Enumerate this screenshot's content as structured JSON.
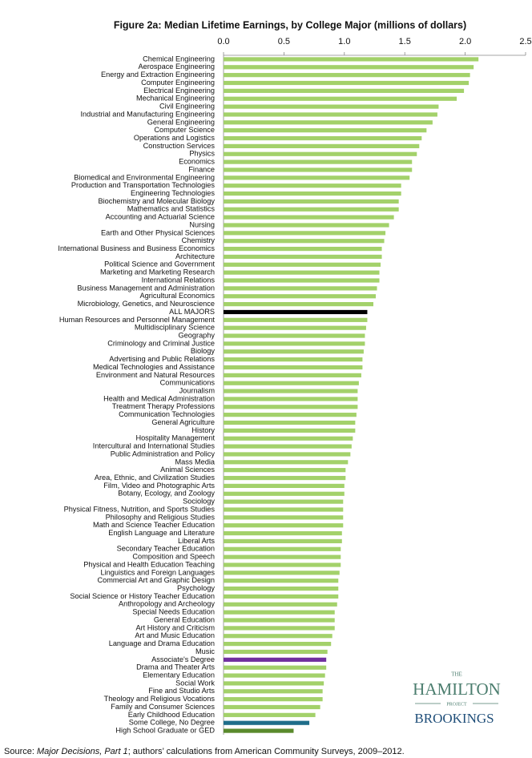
{
  "chart_data": {
    "type": "bar",
    "horizontal": true,
    "title": "Figure 2a: Median Lifetime Earnings, by College Major (millions of dollars)",
    "categories": [
      "Chemical Engineering",
      "Aerospace Engineering",
      "Energy and Extraction Engineering",
      "Computer Engineering",
      "Electrical Engineering",
      "Mechanical Engineering",
      "Civil Engineering",
      "Industrial and Manufacturing Engineering",
      "General Engineering",
      "Computer Science",
      "Operations and Logistics",
      "Construction Services",
      "Physics",
      "Economics",
      "Finance",
      "Biomedical and Environmental Engineering",
      "Production and Transportation Technologies",
      "Engineering Technologies",
      "Biochemistry and Molecular Biology",
      "Mathematics and Statistics",
      "Accounting and Actuarial Science",
      "Nursing",
      "Earth and Other Physical Sciences",
      "Chemistry",
      "International Business and Business Economics",
      "Architecture",
      "Political Science and Government",
      "Marketing and Marketing Research",
      "International Relations",
      "Business Management and Administration",
      "Agricultural Economics",
      "Microbiology, Genetics, and Neuroscience",
      "ALL MAJORS",
      "Human Resources and Personnel Management",
      "Multidisciplinary Science",
      "Geography",
      "Criminology and Criminal Justice",
      "Biology",
      "Advertising and Public Relations",
      "Medical Technologies and Assistance",
      "Environment and Natural Resources",
      "Communications",
      "Journalism",
      "Health and Medical Administration",
      "Treatment Therapy Professions",
      "Communication Technologies",
      "General Agriculture",
      "History",
      "Hospitality Management",
      "Intercultural and International Studies",
      "Public Administration and Policy",
      "Mass Media",
      "Animal Sciences",
      "Area, Ethnic, and Civilization Studies",
      "Film, Video and Photographic Arts",
      "Botany, Ecology, and Zoology",
      "Sociology",
      "Physical Fitness, Nutrition, and Sports Studies",
      "Philosophy and Religious Studies",
      "Math and Science Teacher Education",
      "English Language and Literature",
      "Liberal Arts",
      "Secondary Teacher Education",
      "Composition and Speech",
      "Physical and Health Education Teaching",
      "Linguistics and Foreign Languages",
      "Commercial Art and Graphic Design",
      "Psychology",
      "Social Science or History Teacher Education",
      "Anthropology and Archeology",
      "Special Needs Education",
      "General Education",
      "Art History and Criticism",
      "Art and Music Education",
      "Language and Drama Education",
      "Music",
      "Associate's Degree",
      "Drama and Theater Arts",
      "Elementary Education",
      "Social Work",
      "Fine and Studio Arts",
      "Theology and Religious Vocations",
      "Family and Consumer Sciences",
      "Early Childhood Education",
      "Some College, No Degree",
      "High School Graduate or GED"
    ],
    "values": [
      2.11,
      2.07,
      2.04,
      2.03,
      1.99,
      1.93,
      1.78,
      1.77,
      1.73,
      1.68,
      1.64,
      1.62,
      1.6,
      1.56,
      1.56,
      1.54,
      1.47,
      1.47,
      1.45,
      1.45,
      1.41,
      1.37,
      1.34,
      1.33,
      1.31,
      1.31,
      1.3,
      1.29,
      1.29,
      1.27,
      1.26,
      1.24,
      1.19,
      1.19,
      1.18,
      1.17,
      1.17,
      1.16,
      1.15,
      1.15,
      1.14,
      1.12,
      1.11,
      1.11,
      1.11,
      1.1,
      1.09,
      1.09,
      1.07,
      1.06,
      1.05,
      1.03,
      1.01,
      1.01,
      1.0,
      1.0,
      0.99,
      0.99,
      0.99,
      0.99,
      0.98,
      0.98,
      0.97,
      0.97,
      0.97,
      0.96,
      0.95,
      0.95,
      0.95,
      0.94,
      0.92,
      0.92,
      0.92,
      0.9,
      0.89,
      0.86,
      0.85,
      0.85,
      0.84,
      0.83,
      0.82,
      0.82,
      0.8,
      0.76,
      0.71,
      0.58
    ],
    "color": "#a3d16a",
    "highlight_colors": {
      "ALL MAJORS": "#000000",
      "Associate's Degree": "#7030a0",
      "Some College, No Degree": "#1f6e8a",
      "High School Graduate or GED": "#5a8a2c"
    },
    "xlim": [
      0,
      2.5
    ],
    "xticks": [
      {
        "value": 0,
        "label": "0.0"
      },
      0.5,
      {
        "value": 1,
        "label": "1.0"
      },
      1.5,
      {
        "value": 2,
        "label": "2.0"
      },
      2.5
    ],
    "grid": false,
    "source": [
      "Source: ",
      "Major Decisions, Part 1",
      "; authors’ calculations from American Community Surveys, 2009–2012."
    ],
    "logo": {
      "top": "THE",
      "name": "HAMILTON",
      "sub": "PROJECT",
      "org": "BROOKINGS"
    }
  }
}
